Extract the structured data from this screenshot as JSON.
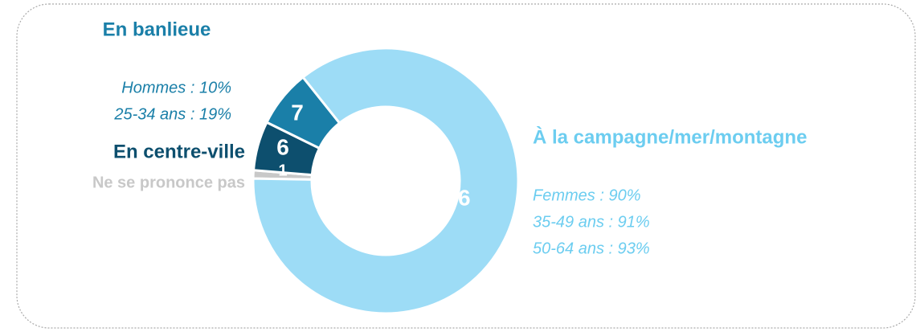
{
  "chart_data": {
    "type": "donut",
    "categories": [
      "Ne se prononce pas",
      "En centre-ville",
      "En banlieue",
      "À la campagne/mer/montagne"
    ],
    "values": [
      1,
      6,
      7,
      86
    ],
    "colors": [
      "#c8c8c8",
      "#0d4f6e",
      "#1a7fa8",
      "#9ddcf6"
    ],
    "label_colors": [
      "#c8c8c8",
      "#0d4f6e",
      "#1a7fa8",
      "#6ccdf0"
    ],
    "notes": [
      [],
      [],
      [
        "Hommes : 10%",
        "25-34 ans : 19%"
      ],
      [
        "Femmes : 90%",
        "35-49 ans : 91%",
        "50-64 ans : 93%"
      ]
    ]
  }
}
